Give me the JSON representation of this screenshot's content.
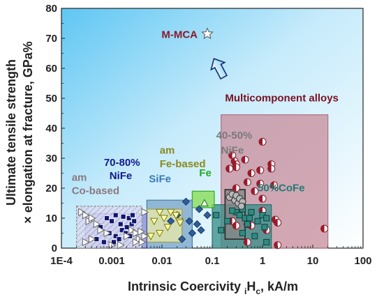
{
  "chart_data": {
    "type": "scatter",
    "xscale": "log",
    "xlim": [
      0.0001,
      100
    ],
    "ylim": [
      0,
      80
    ],
    "xticks": [
      "1E-4",
      "0.001",
      "0.01",
      "0.1",
      "1",
      "10",
      "100"
    ],
    "yticks": [
      "0",
      "10",
      "20",
      "30",
      "40",
      "50",
      "60",
      "70",
      "80"
    ],
    "xlabel": {
      "main": "Intrinsic Coercivity ",
      "sub": "i",
      "tail": "H",
      "sub2": "c",
      "unit": ", kA/m"
    },
    "ylabel": [
      "Ultimate tensile strength",
      "× elongation at fracture, GPa%"
    ],
    "highlight": {
      "label": "M-MCA",
      "x": 0.08,
      "y": 71.5,
      "color": "#8b1a2a"
    },
    "regions": [
      {
        "name": "Multicomponent alloys",
        "x0": 0.15,
        "x1": 20,
        "y0": 0,
        "y1": 44.5,
        "fill": "#c98f9e",
        "stroke": "#b07080",
        "color": "#7a1022",
        "marker": "circle-half"
      },
      {
        "name": "50%CoFe",
        "x0": 0.1,
        "x1": 1.5,
        "y0": 0,
        "y1": 14.5,
        "fill": "#3a8f8a",
        "stroke": "#2a6f6a",
        "color": "#1f7a74",
        "marker": "square"
      },
      {
        "name": "40-50% NiFe",
        "x0": 0.18,
        "x1": 0.45,
        "y0": 3,
        "y1": 19.5,
        "fill": "#888888",
        "stroke": "#333333",
        "color": "#7a7a7a",
        "marker": "hexagon"
      },
      {
        "name": "Fe",
        "x0": 0.04,
        "x1": 0.11,
        "y0": 13.5,
        "y1": 19,
        "fill": "#88dd55",
        "stroke": "#33aa22",
        "color": "#22aa22",
        "marker": "triangle"
      },
      {
        "name": "SiFe",
        "x0": 0.005,
        "x1": 0.04,
        "y0": 0,
        "y1": 16,
        "fill": "#7ea6c9",
        "stroke": "#4a7aa5",
        "color": "#3a78b5",
        "marker": "diamond"
      },
      {
        "name": "am Fe-based",
        "x0": 0.005,
        "x1": 0.025,
        "y0": 2,
        "y1": 13,
        "fill": "#e8e8a8",
        "stroke": "#a0a040",
        "color": "#8a8a20",
        "marker": "triangle-down"
      },
      {
        "name": "70-80% NiFe",
        "x0": 0.0003,
        "x1": 0.005,
        "y0": 0,
        "y1": 11.5,
        "fill": "#8d90d8",
        "stroke": "#4a4fa0",
        "color": "#141a8a",
        "marker": "square-dark"
      },
      {
        "name": "am Co-based",
        "x0": 0.0002,
        "x1": 0.004,
        "y0": 0,
        "y1": 14,
        "fill": "#c9cbe9",
        "stroke": "#888888",
        "color": "#8a7a80",
        "marker": "triangle-right"
      }
    ],
    "series": [
      {
        "region": "Multicomponent alloys",
        "points": [
          [
            1.0,
            35.5
          ],
          [
            0.25,
            31
          ],
          [
            0.28,
            29
          ],
          [
            0.3,
            28
          ],
          [
            0.45,
            29.5
          ],
          [
            0.6,
            25
          ],
          [
            0.9,
            26
          ],
          [
            1.5,
            28
          ],
          [
            1.5,
            26.5
          ],
          [
            0.3,
            27
          ],
          [
            0.22,
            26.5
          ],
          [
            0.5,
            22
          ],
          [
            0.9,
            21.5
          ],
          [
            1.7,
            21
          ],
          [
            0.3,
            20
          ],
          [
            0.25,
            17
          ],
          [
            0.7,
            19
          ],
          [
            1.0,
            12.5
          ],
          [
            1.8,
            9.5
          ],
          [
            0.25,
            9
          ],
          [
            0.5,
            8
          ],
          [
            0.3,
            7.5
          ],
          [
            1.2,
            6
          ],
          [
            0.6,
            7.5
          ],
          [
            0.5,
            2
          ],
          [
            2.0,
            1
          ],
          [
            2.0,
            8.5
          ],
          [
            17,
            6.5
          ],
          [
            1.0,
            16.5
          ]
        ]
      },
      {
        "region": "50%CoFe",
        "points": [
          [
            0.12,
            11
          ],
          [
            0.15,
            6
          ],
          [
            0.2,
            9
          ],
          [
            0.3,
            12
          ],
          [
            0.4,
            13
          ],
          [
            0.45,
            10
          ],
          [
            0.5,
            8
          ],
          [
            0.6,
            12
          ],
          [
            0.7,
            4
          ],
          [
            0.8,
            9
          ],
          [
            1.0,
            11
          ],
          [
            1.1,
            7
          ],
          [
            1.2,
            10
          ],
          [
            1.2,
            2
          ],
          [
            0.25,
            12.5
          ],
          [
            0.35,
            11
          ],
          [
            0.4,
            5
          ],
          [
            0.55,
            10
          ]
        ]
      },
      {
        "region": "40-50% NiFe",
        "points": [
          [
            0.22,
            17
          ],
          [
            0.25,
            18
          ],
          [
            0.28,
            16
          ],
          [
            0.3,
            17.5
          ],
          [
            0.33,
            15
          ],
          [
            0.35,
            16.5
          ],
          [
            0.4,
            15.5
          ],
          [
            0.38,
            14
          ]
        ]
      },
      {
        "region": "Fe",
        "points": [
          [
            0.07,
            15
          ]
        ]
      },
      {
        "region": "SiFe",
        "points": [
          [
            0.03,
            15.5
          ],
          [
            0.02,
            11
          ],
          [
            0.035,
            9
          ],
          [
            0.04,
            5
          ],
          [
            0.025,
            3
          ],
          [
            0.015,
            9
          ],
          [
            0.08,
            11
          ],
          [
            0.05,
            8
          ],
          [
            0.06,
            6
          ],
          [
            0.055,
            13
          ]
        ]
      },
      {
        "region": "am Fe-based",
        "points": [
          [
            0.006,
            4
          ],
          [
            0.007,
            9
          ],
          [
            0.009,
            12
          ],
          [
            0.011,
            10
          ],
          [
            0.013,
            7
          ],
          [
            0.015,
            12
          ],
          [
            0.019,
            11
          ],
          [
            0.022,
            9
          ],
          [
            0.023,
            8.5
          ],
          [
            0.009,
            5
          ]
        ]
      },
      {
        "region": "70-80% NiFe",
        "points": [
          [
            0.0006,
            7
          ],
          [
            0.0008,
            10
          ],
          [
            0.001,
            9
          ],
          [
            0.0012,
            11
          ],
          [
            0.0015,
            8
          ],
          [
            0.0017,
            10.5
          ],
          [
            0.002,
            7
          ],
          [
            0.0022,
            10
          ],
          [
            0.0025,
            8
          ],
          [
            0.0028,
            9
          ],
          [
            0.0009,
            5
          ],
          [
            0.0012,
            4
          ],
          [
            0.0014,
            3
          ],
          [
            0.0016,
            6
          ],
          [
            0.0019,
            5
          ],
          [
            0.0023,
            4
          ],
          [
            0.0026,
            11
          ],
          [
            0.0011,
            2
          ],
          [
            0.0005,
            3
          ],
          [
            0.0007,
            2
          ]
        ]
      },
      {
        "region": "am Co-based",
        "points": [
          [
            0.00025,
            12
          ],
          [
            0.0003,
            11
          ],
          [
            0.00035,
            9
          ],
          [
            0.0004,
            10
          ],
          [
            0.0005,
            8
          ],
          [
            0.0006,
            6
          ],
          [
            0.0008,
            5
          ],
          [
            0.0004,
            3
          ],
          [
            0.0003,
            2
          ],
          [
            0.002,
            4
          ],
          [
            0.0025,
            6
          ],
          [
            0.003,
            5
          ],
          [
            0.0035,
            3
          ],
          [
            0.0045,
            4
          ],
          [
            0.004,
            2
          ],
          [
            0.003,
            2
          ],
          [
            0.001,
            1
          ],
          [
            0.0015,
            1
          ],
          [
            0.0045,
            12
          ],
          [
            0.0038,
            5.5
          ]
        ]
      }
    ],
    "labels": [
      {
        "text": "Multicomponent alloys",
        "region": "Multicomponent alloys",
        "x": 0.18,
        "y": 49
      },
      {
        "text": "50%CoFe",
        "region": "50%CoFe",
        "x": 0.8,
        "y": 19
      },
      {
        "text": "40-50%",
        "region": "40-50% NiFe",
        "x": 0.12,
        "y": 36.5
      },
      {
        "text": "NiFe",
        "region": "40-50% NiFe",
        "x": 0.15,
        "y": 31.5
      },
      {
        "text": "Fe",
        "region": "Fe",
        "x": 0.055,
        "y": 24
      },
      {
        "text": "am",
        "region": "am Fe-based",
        "x": 0.009,
        "y": 31.5
      },
      {
        "text": "Fe-based",
        "region": "am Fe-based",
        "x": 0.009,
        "y": 27
      },
      {
        "text": "SiFe",
        "region": "SiFe",
        "x": 0.0055,
        "y": 22
      },
      {
        "text": "70-80%",
        "region": "70-80% NiFe",
        "x": 0.0007,
        "y": 27.5
      },
      {
        "text": "NiFe",
        "region": "70-80% NiFe",
        "x": 0.0009,
        "y": 23
      },
      {
        "text": "am",
        "region": "am Co-based",
        "x": 0.00016,
        "y": 22.5
      },
      {
        "text": "Co-based",
        "region": "am Co-based",
        "x": 0.00016,
        "y": 18
      }
    ]
  }
}
